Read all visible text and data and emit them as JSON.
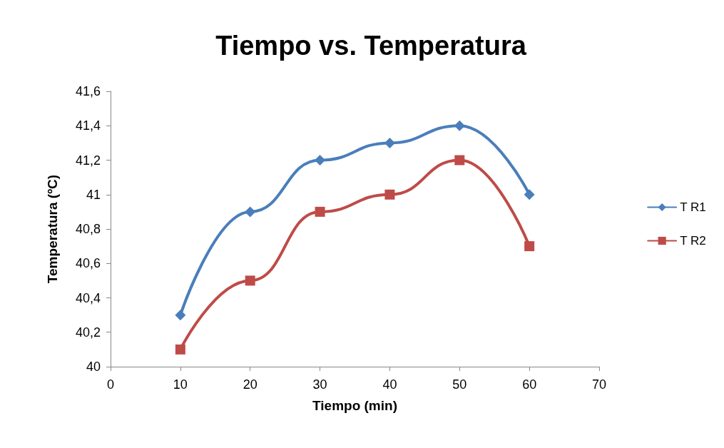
{
  "chart_data": {
    "type": "line",
    "title": "Tiempo vs. Temperatura",
    "xlabel": "Tiempo (min)",
    "ylabel": "Temperatura (ºC)",
    "x": [
      10,
      20,
      30,
      40,
      50,
      60
    ],
    "series": [
      {
        "name": "T R1",
        "color": "#4a7ebb",
        "marker": "diamond",
        "values": [
          40.3,
          40.9,
          41.2,
          41.3,
          41.4,
          41.0
        ]
      },
      {
        "name": "T R2",
        "color": "#be4b48",
        "marker": "square",
        "values": [
          40.1,
          40.5,
          40.9,
          41.0,
          41.2,
          40.7
        ]
      }
    ],
    "xlim": [
      0,
      70
    ],
    "xticks": [
      0,
      10,
      20,
      30,
      40,
      50,
      60,
      70
    ],
    "ylim": [
      40,
      41.6
    ],
    "yticks": [
      40,
      {
        "value": 40.2,
        "label": "40,2"
      },
      {
        "value": 40.4,
        "label": "40,4"
      },
      {
        "value": 40.6,
        "label": "40,6"
      },
      {
        "value": 40.8,
        "label": "40,8"
      },
      41,
      {
        "value": 41.2,
        "label": "41,2"
      },
      {
        "value": 41.4,
        "label": "41,4"
      },
      {
        "value": 41.6,
        "label": "41,6"
      }
    ],
    "grid": false,
    "legend": "right",
    "line_style": "solid"
  }
}
